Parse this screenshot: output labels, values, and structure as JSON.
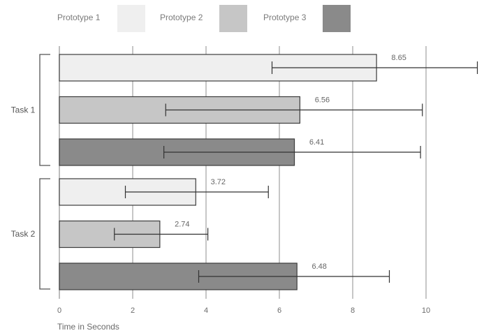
{
  "chart_data": {
    "type": "bar",
    "orientation": "horizontal",
    "xlabel": "Time in Seconds",
    "xlim": [
      0,
      11.5
    ],
    "xticks": [
      0,
      2,
      4,
      6,
      8,
      10
    ],
    "grid": true,
    "legend_position": "top",
    "groups": [
      {
        "name": "Task 1"
      },
      {
        "name": "Task 2"
      }
    ],
    "series": [
      {
        "name": "Prototype 1",
        "color": "#efefef"
      },
      {
        "name": "Prototype 2",
        "color": "#c6c6c6"
      },
      {
        "name": "Prototype 3",
        "color": "#8a8a8a"
      }
    ],
    "bars": [
      {
        "group": 0,
        "series": 0,
        "value": 8.65,
        "label": "8.65",
        "err_low": 5.8,
        "err_high": 11.4
      },
      {
        "group": 0,
        "series": 1,
        "value": 6.56,
        "label": "6.56",
        "err_low": 2.9,
        "err_high": 9.9
      },
      {
        "group": 0,
        "series": 2,
        "value": 6.41,
        "label": "6.41",
        "err_low": 2.85,
        "err_high": 9.85
      },
      {
        "group": 1,
        "series": 0,
        "value": 3.72,
        "label": "3.72",
        "err_low": 1.8,
        "err_high": 5.7
      },
      {
        "group": 1,
        "series": 1,
        "value": 2.74,
        "label": "2.74",
        "err_low": 1.5,
        "err_high": 4.05
      },
      {
        "group": 1,
        "series": 2,
        "value": 6.48,
        "label": "6.48",
        "err_low": 3.8,
        "err_high": 9.0
      }
    ]
  }
}
